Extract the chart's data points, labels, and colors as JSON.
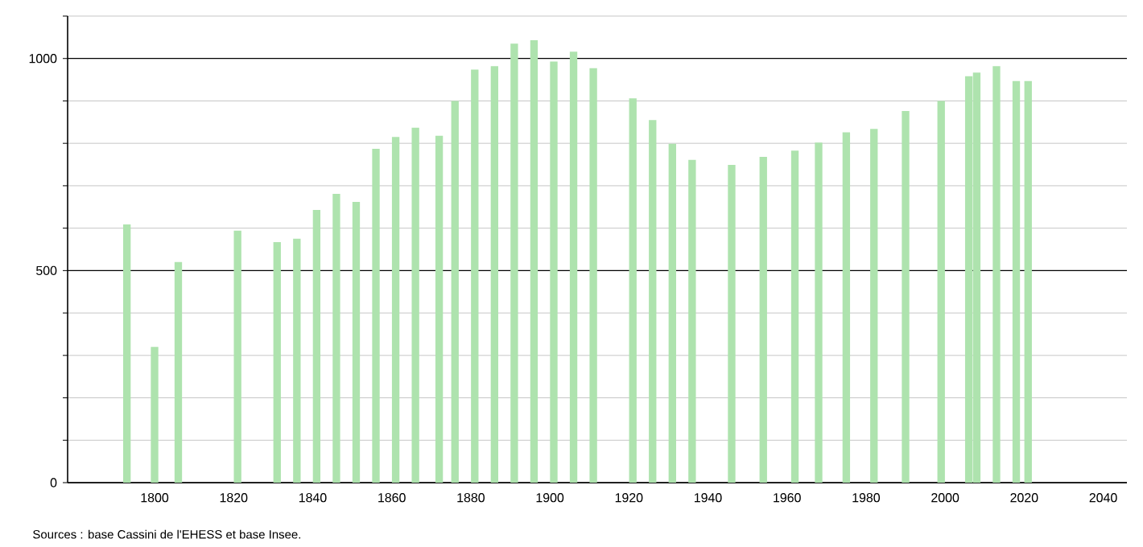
{
  "chart_data": {
    "type": "bar",
    "color": "#aee3ae",
    "x": [
      1793,
      1800,
      1806,
      1821,
      1831,
      1836,
      1841,
      1846,
      1851,
      1856,
      1861,
      1866,
      1872,
      1876,
      1881,
      1886,
      1891,
      1896,
      1901,
      1906,
      1911,
      1921,
      1926,
      1931,
      1936,
      1946,
      1954,
      1962,
      1968,
      1975,
      1982,
      1990,
      1999,
      2006,
      2008,
      2013,
      2018,
      2021
    ],
    "values": [
      609,
      320,
      520,
      594,
      567,
      575,
      643,
      681,
      662,
      787,
      815,
      837,
      818,
      900,
      974,
      982,
      1035,
      1043,
      993,
      1016,
      977,
      906,
      855,
      799,
      761,
      749,
      768,
      783,
      802,
      826,
      834,
      876,
      900,
      958,
      967,
      982,
      947,
      947
    ],
    "xlim": [
      1778,
      2046
    ],
    "xticks": [
      1800,
      1820,
      1840,
      1860,
      1880,
      1900,
      1920,
      1940,
      1960,
      1980,
      2000,
      2020,
      2040
    ],
    "ylim": [
      0,
      1100
    ],
    "yticks": [
      0,
      {
        "value": 100,
        "label": null
      },
      {
        "value": 200,
        "label": null
      },
      {
        "value": 300,
        "label": null
      },
      {
        "value": 400,
        "label": null
      },
      500,
      {
        "value": 600,
        "label": null
      },
      {
        "value": 700,
        "label": null
      },
      {
        "value": 800,
        "label": null
      },
      {
        "value": 900,
        "label": null
      },
      1000,
      {
        "value": 1100,
        "label": null
      }
    ],
    "grid": "y",
    "annotations": [
      "Sources : base Cassini de l'EHESS et base Insee."
    ]
  }
}
